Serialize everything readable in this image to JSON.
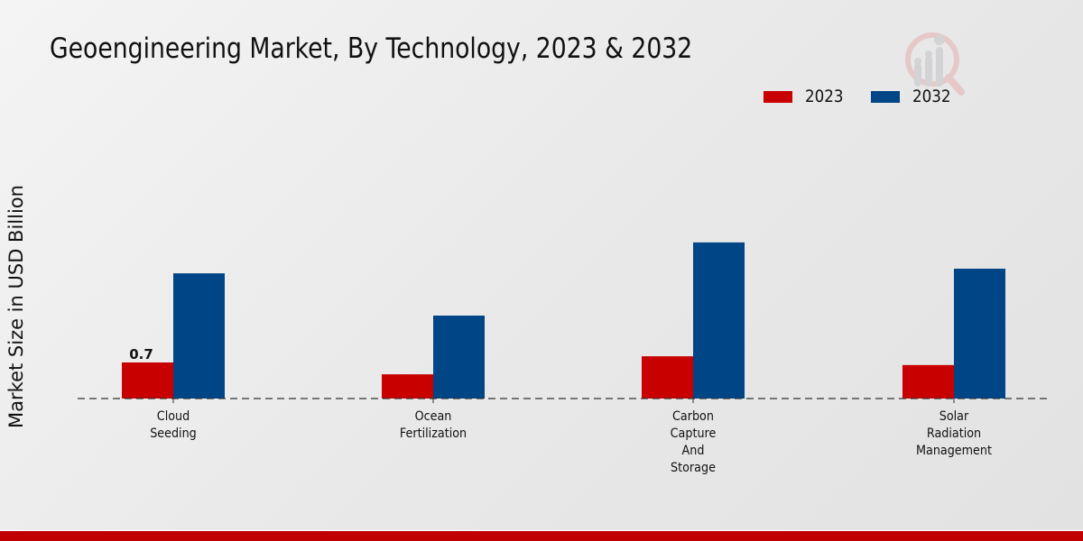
{
  "chart_data": {
    "type": "bar",
    "title": "Geoengineering Market, By Technology, 2023 & 2032",
    "xlabel": "",
    "ylabel": "Market Size in USD Billion",
    "categories": [
      [
        "Cloud",
        "Seeding"
      ],
      [
        "Ocean",
        "Fertilization"
      ],
      [
        "Carbon",
        "Capture",
        "And",
        "Storage"
      ],
      [
        "Solar",
        "Radiation",
        "Management"
      ]
    ],
    "series": [
      {
        "name": "2023",
        "color": "#c80000",
        "values": [
          0.7,
          0.47,
          0.82,
          0.65
        ]
      },
      {
        "name": "2032",
        "color": "#004586",
        "values": [
          2.43,
          1.61,
          3.03,
          2.52
        ]
      }
    ],
    "data_labels": [
      {
        "series": "2023",
        "category_index": 0,
        "text": "0.7"
      }
    ],
    "ylim": [
      0,
      3.5
    ],
    "grid": false,
    "legend_position": "top-right"
  },
  "footer_color": "#c00000"
}
